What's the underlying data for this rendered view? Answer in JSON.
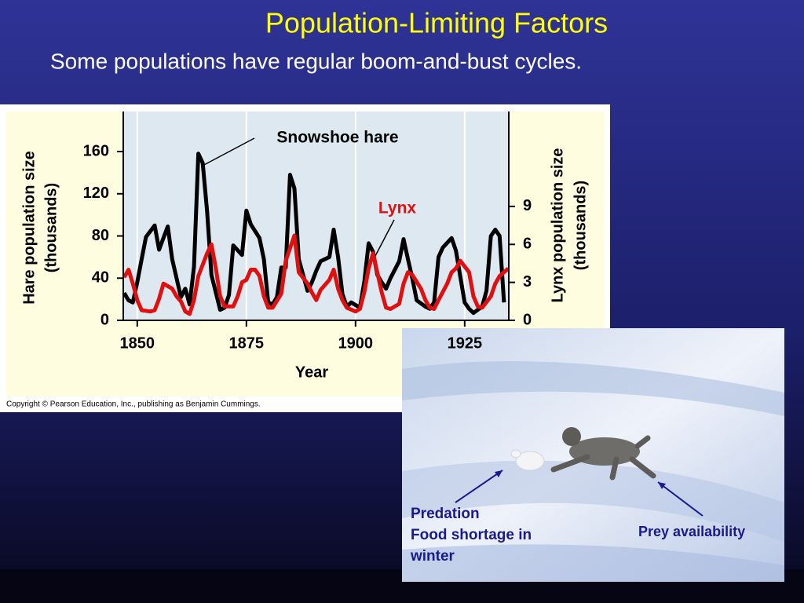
{
  "slide": {
    "title": "Population-Limiting Factors",
    "subtitle": "Some populations have regular boom-and-bust cycles."
  },
  "chart_data": {
    "type": "line",
    "annotations": {
      "hare": "Snowshoe hare",
      "lynx": "Lynx"
    },
    "xlabel": "Year",
    "ylabel": "Hare population size",
    "ylabel_unit": "(thousands)",
    "y2label": "Lynx population size",
    "y2label_unit": "(thousands)",
    "copyright": "Copyright © Pearson Education, Inc., publishing as Benjamin Cummings.",
    "xlim": [
      1846.8,
      1935.1
    ],
    "xticks": [
      1850,
      1875,
      1900,
      1925
    ],
    "ylim": [
      0,
      198
    ],
    "yticks": [
      0,
      40,
      80,
      120,
      160
    ],
    "y2lim": [
      0,
      16.5
    ],
    "y2ticks": [
      0,
      3,
      6,
      9
    ],
    "grid": true,
    "series": [
      {
        "name": "Snowshoe hare",
        "color": "#000000",
        "x": [
          1847,
          1848,
          1849,
          1850,
          1851,
          1852,
          1854,
          1855,
          1857,
          1858,
          1860,
          1861,
          1862,
          1863,
          1864,
          1865,
          1866,
          1867,
          1869,
          1870,
          1871,
          1872,
          1874,
          1875,
          1876,
          1878,
          1879,
          1880,
          1881,
          1882,
          1883,
          1884,
          1885,
          1886,
          1887,
          1889,
          1890,
          1891,
          1892,
          1894,
          1895,
          1896,
          1897,
          1898,
          1899,
          1901,
          1902,
          1903,
          1904,
          1905,
          1906,
          1907,
          1908,
          1910,
          1911,
          1912,
          1913,
          1914,
          1916,
          1917,
          1918,
          1919,
          1920,
          1922,
          1923,
          1925,
          1926,
          1927,
          1929,
          1930,
          1931,
          1932,
          1933,
          1934
        ],
        "values": [
          26,
          19,
          17,
          36,
          58,
          79,
          90,
          67,
          89,
          58,
          22,
          30,
          15,
          51,
          158,
          149,
          103,
          43,
          10,
          12,
          24,
          71,
          62,
          104,
          91,
          78,
          58,
          17,
          15,
          22,
          50,
          50,
          138,
          125,
          58,
          28,
          36,
          47,
          56,
          60,
          86,
          60,
          25,
          13,
          17,
          12,
          36,
          73,
          65,
          43,
          36,
          30,
          40,
          56,
          77,
          58,
          40,
          19,
          13,
          11,
          17,
          60,
          69,
          78,
          66,
          17,
          11,
          7,
          13,
          28,
          80,
          86,
          80,
          17
        ]
      },
      {
        "name": "Lynx",
        "color": "#e01010",
        "axis": "y2",
        "x": [
          1847,
          1848,
          1849,
          1850,
          1851,
          1853,
          1854,
          1855,
          1856,
          1858,
          1859,
          1860,
          1861,
          1862,
          1863,
          1864,
          1866,
          1867,
          1868,
          1869,
          1870,
          1872,
          1873,
          1874,
          1875,
          1876,
          1877,
          1878,
          1879,
          1880,
          1881,
          1883,
          1884,
          1885,
          1886,
          1887,
          1889,
          1890,
          1891,
          1892,
          1894,
          1895,
          1896,
          1897,
          1898,
          1900,
          1901,
          1902,
          1903,
          1904,
          1906,
          1907,
          1908,
          1910,
          1911,
          1912,
          1913,
          1915,
          1916,
          1917,
          1918,
          1919,
          1921,
          1922,
          1923,
          1924,
          1926,
          1927,
          1928,
          1929,
          1931,
          1932,
          1933,
          1935
        ],
        "values": [
          3.4,
          4.0,
          2.9,
          1.6,
          0.8,
          0.7,
          0.8,
          1.7,
          2.9,
          2.5,
          1.9,
          1.5,
          0.7,
          0.5,
          1.6,
          3.5,
          5.3,
          6.0,
          4.1,
          1.9,
          1.1,
          1.1,
          1.9,
          3.0,
          3.2,
          4.0,
          4.0,
          3.5,
          1.9,
          1.0,
          1.0,
          2.1,
          4.7,
          5.7,
          6.7,
          3.8,
          2.9,
          2.2,
          1.6,
          2.4,
          3.2,
          4.0,
          2.5,
          1.6,
          1.0,
          0.7,
          0.9,
          2.2,
          4.1,
          5.3,
          2.2,
          1.0,
          0.9,
          1.3,
          2.9,
          3.8,
          3.6,
          2.5,
          1.6,
          1.0,
          0.9,
          1.6,
          2.9,
          3.8,
          4.1,
          4.7,
          3.8,
          1.9,
          1.1,
          1.0,
          1.9,
          2.9,
          3.5,
          4.1
        ]
      }
    ]
  },
  "photo": {
    "captions": {
      "predation": "Predation",
      "food_1": "Food shortage in",
      "food_2": "winter",
      "prey": "Prey availability"
    }
  }
}
